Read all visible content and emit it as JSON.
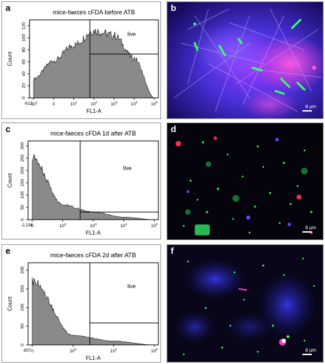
{
  "colors": {
    "histogram_fill": "#8a8a8a",
    "histogram_stroke": "#111111",
    "gate_line": "#000000",
    "micro_green": "#3dff6a",
    "micro_magenta": "#ff3ad0",
    "micro_blue": "#4a3cff",
    "micro_red": "#ff2a5a"
  },
  "panels": [
    {
      "letter": "a"
    },
    {
      "letter": "b"
    },
    {
      "letter": "c"
    },
    {
      "letter": "d"
    },
    {
      "letter": "e"
    },
    {
      "letter": "f"
    }
  ],
  "scalebar_label": "8 µm",
  "chart_data": [
    {
      "type": "area",
      "title": "mice-faeces cFDA before ATB",
      "xlabel": "FL1-A",
      "ylabel": "Count",
      "x_scale": "biexponential",
      "xmin_label": "-613",
      "xticks": [
        "-10^1",
        "0",
        "10^1",
        "10^2",
        "10^3",
        "10^4",
        "10^5"
      ],
      "yticks": [
        0,
        20,
        40,
        60,
        80,
        100,
        120
      ],
      "ylim": [
        0,
        130
      ],
      "gate_label": "live",
      "x": [
        "-10^1",
        "0",
        "10^1",
        "10^2",
        "10^3",
        "10^4",
        "10^5"
      ],
      "values": [
        32,
        62,
        88,
        112,
        104,
        66,
        0
      ]
    },
    {
      "type": "area",
      "title": "mice-faeces cFDA 1d after ATB",
      "xlabel": "FL1-A",
      "ylabel": "Count",
      "x_scale": "biexponential",
      "xmin_label": "-2,234",
      "xticks": [
        "0",
        "10^2",
        "10^3",
        "10^4",
        "10^5"
      ],
      "yticks": [
        0,
        50,
        100,
        150,
        200,
        250,
        300
      ],
      "ylim": [
        0,
        320
      ],
      "gate_label": "live",
      "x": [
        "0",
        "10^2",
        "10^3",
        "10^4",
        "10^5"
      ],
      "values": [
        250,
        60,
        30,
        10,
        0
      ]
    },
    {
      "type": "area",
      "title": "mice-faeces cFDA 2d after ATB",
      "xlabel": "FL1-A",
      "ylabel": "Count",
      "x_scale": "biexponential",
      "xmin_label": "-807",
      "xticks": [
        "0",
        "10^3",
        "10^4",
        "10^5"
      ],
      "yticks": [
        0,
        50,
        100,
        150,
        200
      ],
      "ylim": [
        0,
        220
      ],
      "gate_label": "live",
      "x": [
        "0",
        "10^3",
        "10^4",
        "10^5"
      ],
      "values": [
        170,
        25,
        10,
        0
      ]
    }
  ]
}
